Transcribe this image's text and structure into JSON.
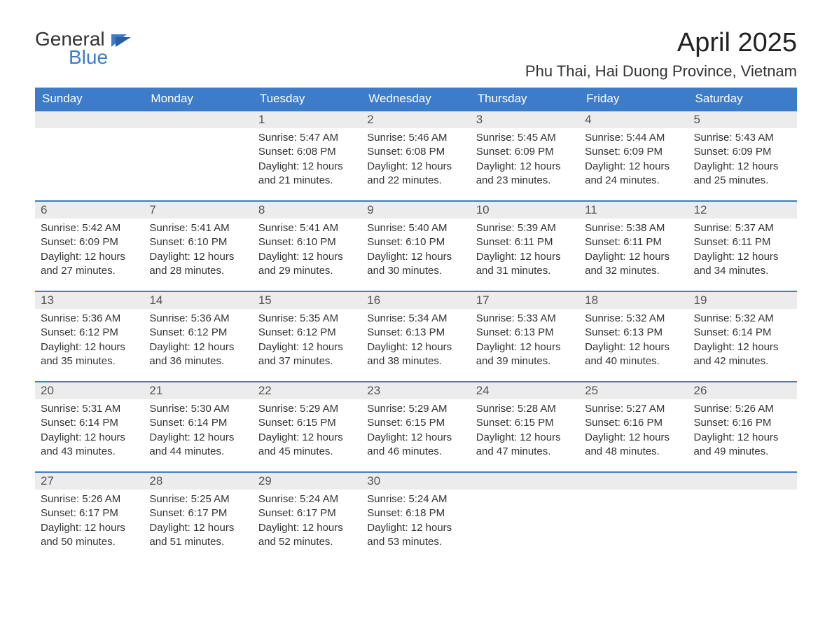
{
  "logo": {
    "text1": "General",
    "text2": "Blue"
  },
  "title": "April 2025",
  "location": "Phu Thai, Hai Duong Province, Vietnam",
  "colors": {
    "header_bg": "#3d7cc9",
    "header_text": "#ffffff",
    "daynum_bg": "#ececec",
    "daynum_border": "#3d7cc9",
    "body_text": "#333333",
    "page_bg": "#ffffff",
    "logo_blue": "#3d7cc9"
  },
  "fonts": {
    "title_pt": 38,
    "location_pt": 22,
    "header_pt": 17,
    "cell_pt": 15
  },
  "dayNames": [
    "Sunday",
    "Monday",
    "Tuesday",
    "Wednesday",
    "Thursday",
    "Friday",
    "Saturday"
  ],
  "labels": {
    "sunrise": "Sunrise: ",
    "sunset": "Sunset: ",
    "daylight": "Daylight: "
  },
  "weeks": [
    {
      "nums": [
        "",
        "",
        "1",
        "2",
        "3",
        "4",
        "5"
      ],
      "cells": [
        null,
        null,
        {
          "sunrise": "5:47 AM",
          "sunset": "6:08 PM",
          "daylight": "12 hours and 21 minutes."
        },
        {
          "sunrise": "5:46 AM",
          "sunset": "6:08 PM",
          "daylight": "12 hours and 22 minutes."
        },
        {
          "sunrise": "5:45 AM",
          "sunset": "6:09 PM",
          "daylight": "12 hours and 23 minutes."
        },
        {
          "sunrise": "5:44 AM",
          "sunset": "6:09 PM",
          "daylight": "12 hours and 24 minutes."
        },
        {
          "sunrise": "5:43 AM",
          "sunset": "6:09 PM",
          "daylight": "12 hours and 25 minutes."
        }
      ]
    },
    {
      "nums": [
        "6",
        "7",
        "8",
        "9",
        "10",
        "11",
        "12"
      ],
      "cells": [
        {
          "sunrise": "5:42 AM",
          "sunset": "6:09 PM",
          "daylight": "12 hours and 27 minutes."
        },
        {
          "sunrise": "5:41 AM",
          "sunset": "6:10 PM",
          "daylight": "12 hours and 28 minutes."
        },
        {
          "sunrise": "5:41 AM",
          "sunset": "6:10 PM",
          "daylight": "12 hours and 29 minutes."
        },
        {
          "sunrise": "5:40 AM",
          "sunset": "6:10 PM",
          "daylight": "12 hours and 30 minutes."
        },
        {
          "sunrise": "5:39 AM",
          "sunset": "6:11 PM",
          "daylight": "12 hours and 31 minutes."
        },
        {
          "sunrise": "5:38 AM",
          "sunset": "6:11 PM",
          "daylight": "12 hours and 32 minutes."
        },
        {
          "sunrise": "5:37 AM",
          "sunset": "6:11 PM",
          "daylight": "12 hours and 34 minutes."
        }
      ]
    },
    {
      "nums": [
        "13",
        "14",
        "15",
        "16",
        "17",
        "18",
        "19"
      ],
      "cells": [
        {
          "sunrise": "5:36 AM",
          "sunset": "6:12 PM",
          "daylight": "12 hours and 35 minutes."
        },
        {
          "sunrise": "5:36 AM",
          "sunset": "6:12 PM",
          "daylight": "12 hours and 36 minutes."
        },
        {
          "sunrise": "5:35 AM",
          "sunset": "6:12 PM",
          "daylight": "12 hours and 37 minutes."
        },
        {
          "sunrise": "5:34 AM",
          "sunset": "6:13 PM",
          "daylight": "12 hours and 38 minutes."
        },
        {
          "sunrise": "5:33 AM",
          "sunset": "6:13 PM",
          "daylight": "12 hours and 39 minutes."
        },
        {
          "sunrise": "5:32 AM",
          "sunset": "6:13 PM",
          "daylight": "12 hours and 40 minutes."
        },
        {
          "sunrise": "5:32 AM",
          "sunset": "6:14 PM",
          "daylight": "12 hours and 42 minutes."
        }
      ]
    },
    {
      "nums": [
        "20",
        "21",
        "22",
        "23",
        "24",
        "25",
        "26"
      ],
      "cells": [
        {
          "sunrise": "5:31 AM",
          "sunset": "6:14 PM",
          "daylight": "12 hours and 43 minutes."
        },
        {
          "sunrise": "5:30 AM",
          "sunset": "6:14 PM",
          "daylight": "12 hours and 44 minutes."
        },
        {
          "sunrise": "5:29 AM",
          "sunset": "6:15 PM",
          "daylight": "12 hours and 45 minutes."
        },
        {
          "sunrise": "5:29 AM",
          "sunset": "6:15 PM",
          "daylight": "12 hours and 46 minutes."
        },
        {
          "sunrise": "5:28 AM",
          "sunset": "6:15 PM",
          "daylight": "12 hours and 47 minutes."
        },
        {
          "sunrise": "5:27 AM",
          "sunset": "6:16 PM",
          "daylight": "12 hours and 48 minutes."
        },
        {
          "sunrise": "5:26 AM",
          "sunset": "6:16 PM",
          "daylight": "12 hours and 49 minutes."
        }
      ]
    },
    {
      "nums": [
        "27",
        "28",
        "29",
        "30",
        "",
        "",
        ""
      ],
      "cells": [
        {
          "sunrise": "5:26 AM",
          "sunset": "6:17 PM",
          "daylight": "12 hours and 50 minutes."
        },
        {
          "sunrise": "5:25 AM",
          "sunset": "6:17 PM",
          "daylight": "12 hours and 51 minutes."
        },
        {
          "sunrise": "5:24 AM",
          "sunset": "6:17 PM",
          "daylight": "12 hours and 52 minutes."
        },
        {
          "sunrise": "5:24 AM",
          "sunset": "6:18 PM",
          "daylight": "12 hours and 53 minutes."
        },
        null,
        null,
        null
      ]
    }
  ]
}
